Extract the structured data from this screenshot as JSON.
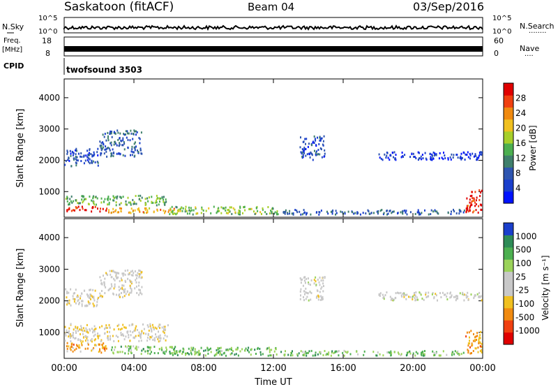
{
  "header": {
    "station": "Saskatoon (fitACF)",
    "beam": "Beam 04",
    "date": "03/Sep/2016"
  },
  "strips": {
    "nsky": {
      "left_label": "N.Sky",
      "left_ticks": [
        "10^5",
        "10^0"
      ],
      "right_label": "N.Search",
      "right_ticks": [
        "10^5",
        "10^0"
      ],
      "right_legend": "........"
    },
    "freq": {
      "left_label_top": "Freq.",
      "left_label_unit": "[MHz]",
      "left_ticks": [
        "18",
        "8"
      ],
      "right_label": "Nave",
      "right_ticks": [
        "60",
        "0"
      ],
      "right_legend": "...."
    },
    "cpid": {
      "label": "CPID",
      "value": "twofsound 3503"
    }
  },
  "x_axis": {
    "title": "Time UT",
    "ticks": [
      "00:00",
      "04:00",
      "08:00",
      "12:00",
      "16:00",
      "20:00",
      "00:00"
    ],
    "range_hours": [
      0,
      24
    ]
  },
  "chart_data": [
    {
      "type": "heatmap",
      "quantity": "Power",
      "colorbar_label": "Power [dB]",
      "colorbar_ticks": [
        "28",
        "24",
        "20",
        "16",
        "12",
        "8",
        "4"
      ],
      "colorbar_range": [
        0,
        32
      ],
      "ylabel": "Slant Range [km]",
      "ylim": [
        180,
        4600
      ],
      "y_ticks": [
        "4000",
        "3000",
        "2000",
        "1000"
      ],
      "y_tick_values": [
        4000,
        3000,
        2000,
        1000
      ],
      "colors": [
        "#0012ff",
        "#1a3fcc",
        "#2e55b0",
        "#3f7f6c",
        "#4caf50",
        "#a7cf2a",
        "#f0c020",
        "#f08a10",
        "#f04010",
        "#e00000"
      ],
      "regions": [
        {
          "t": [
            0.0,
            2.5
          ],
          "r": [
            350,
            550
          ],
          "level": 0.92
        },
        {
          "t": [
            2.5,
            6.5
          ],
          "r": [
            300,
            500
          ],
          "level": 0.7
        },
        {
          "t": [
            0.0,
            6.0
          ],
          "r": [
            550,
            900
          ],
          "level": 0.45
        },
        {
          "t": [
            6.0,
            12.5
          ],
          "r": [
            250,
            550
          ],
          "level": 0.5
        },
        {
          "t": [
            0.0,
            2.0
          ],
          "r": [
            1800,
            2400
          ],
          "level": 0.2
        },
        {
          "t": [
            2.0,
            4.5
          ],
          "r": [
            2100,
            3000
          ],
          "level": 0.25
        },
        {
          "t": [
            13.5,
            15.0
          ],
          "r": [
            2000,
            2800
          ],
          "level": 0.2
        },
        {
          "t": [
            18.0,
            24.0
          ],
          "r": [
            2000,
            2300
          ],
          "level": 0.12
        },
        {
          "t": [
            23.0,
            24.0
          ],
          "r": [
            300,
            1100
          ],
          "level": 0.9
        },
        {
          "t": [
            12.5,
            23.0
          ],
          "r": [
            250,
            450
          ],
          "level": 0.25
        }
      ]
    },
    {
      "type": "heatmap",
      "quantity": "Velocity",
      "colorbar_label": "Velocity [m s⁻¹]",
      "colorbar_ticks": [
        "1000",
        "500",
        "100",
        "25",
        "-25",
        "-100",
        "-500",
        "-1000"
      ],
      "colorbar_range": [
        -1200,
        1200
      ],
      "ylabel": "Slant Range [km]",
      "ylim": [
        180,
        4600
      ],
      "y_ticks": [
        "4000",
        "3000",
        "2000",
        "1000"
      ],
      "y_tick_values": [
        4000,
        3000,
        2000,
        1000
      ],
      "colors": [
        "#e00000",
        "#f04010",
        "#f08a10",
        "#f0c020",
        "#c8c8c8",
        "#c8c8c8",
        "#9bd35a",
        "#4caf50",
        "#2e8b57",
        "#1a3fcc"
      ],
      "regions": [
        {
          "t": [
            0.0,
            2.5
          ],
          "r": [
            350,
            700
          ],
          "level": 0.3
        },
        {
          "t": [
            2.5,
            6.5
          ],
          "r": [
            300,
            600
          ],
          "level": 0.7
        },
        {
          "t": [
            0.0,
            6.0
          ],
          "r": [
            700,
            1300
          ],
          "level": 0.45
        },
        {
          "t": [
            6.0,
            12.5
          ],
          "r": [
            250,
            550
          ],
          "level": 0.72
        },
        {
          "t": [
            0.0,
            2.0
          ],
          "r": [
            1800,
            2400
          ],
          "level": 0.48
        },
        {
          "t": [
            2.0,
            4.5
          ],
          "r": [
            2100,
            3000
          ],
          "level": 0.48
        },
        {
          "t": [
            13.5,
            15.0
          ],
          "r": [
            2000,
            2800
          ],
          "level": 0.5
        },
        {
          "t": [
            18.0,
            24.0
          ],
          "r": [
            2000,
            2300
          ],
          "level": 0.5
        },
        {
          "t": [
            23.0,
            24.0
          ],
          "r": [
            300,
            1100
          ],
          "level": 0.28
        },
        {
          "t": [
            12.5,
            23.0
          ],
          "r": [
            250,
            450
          ],
          "level": 0.7
        }
      ]
    }
  ]
}
